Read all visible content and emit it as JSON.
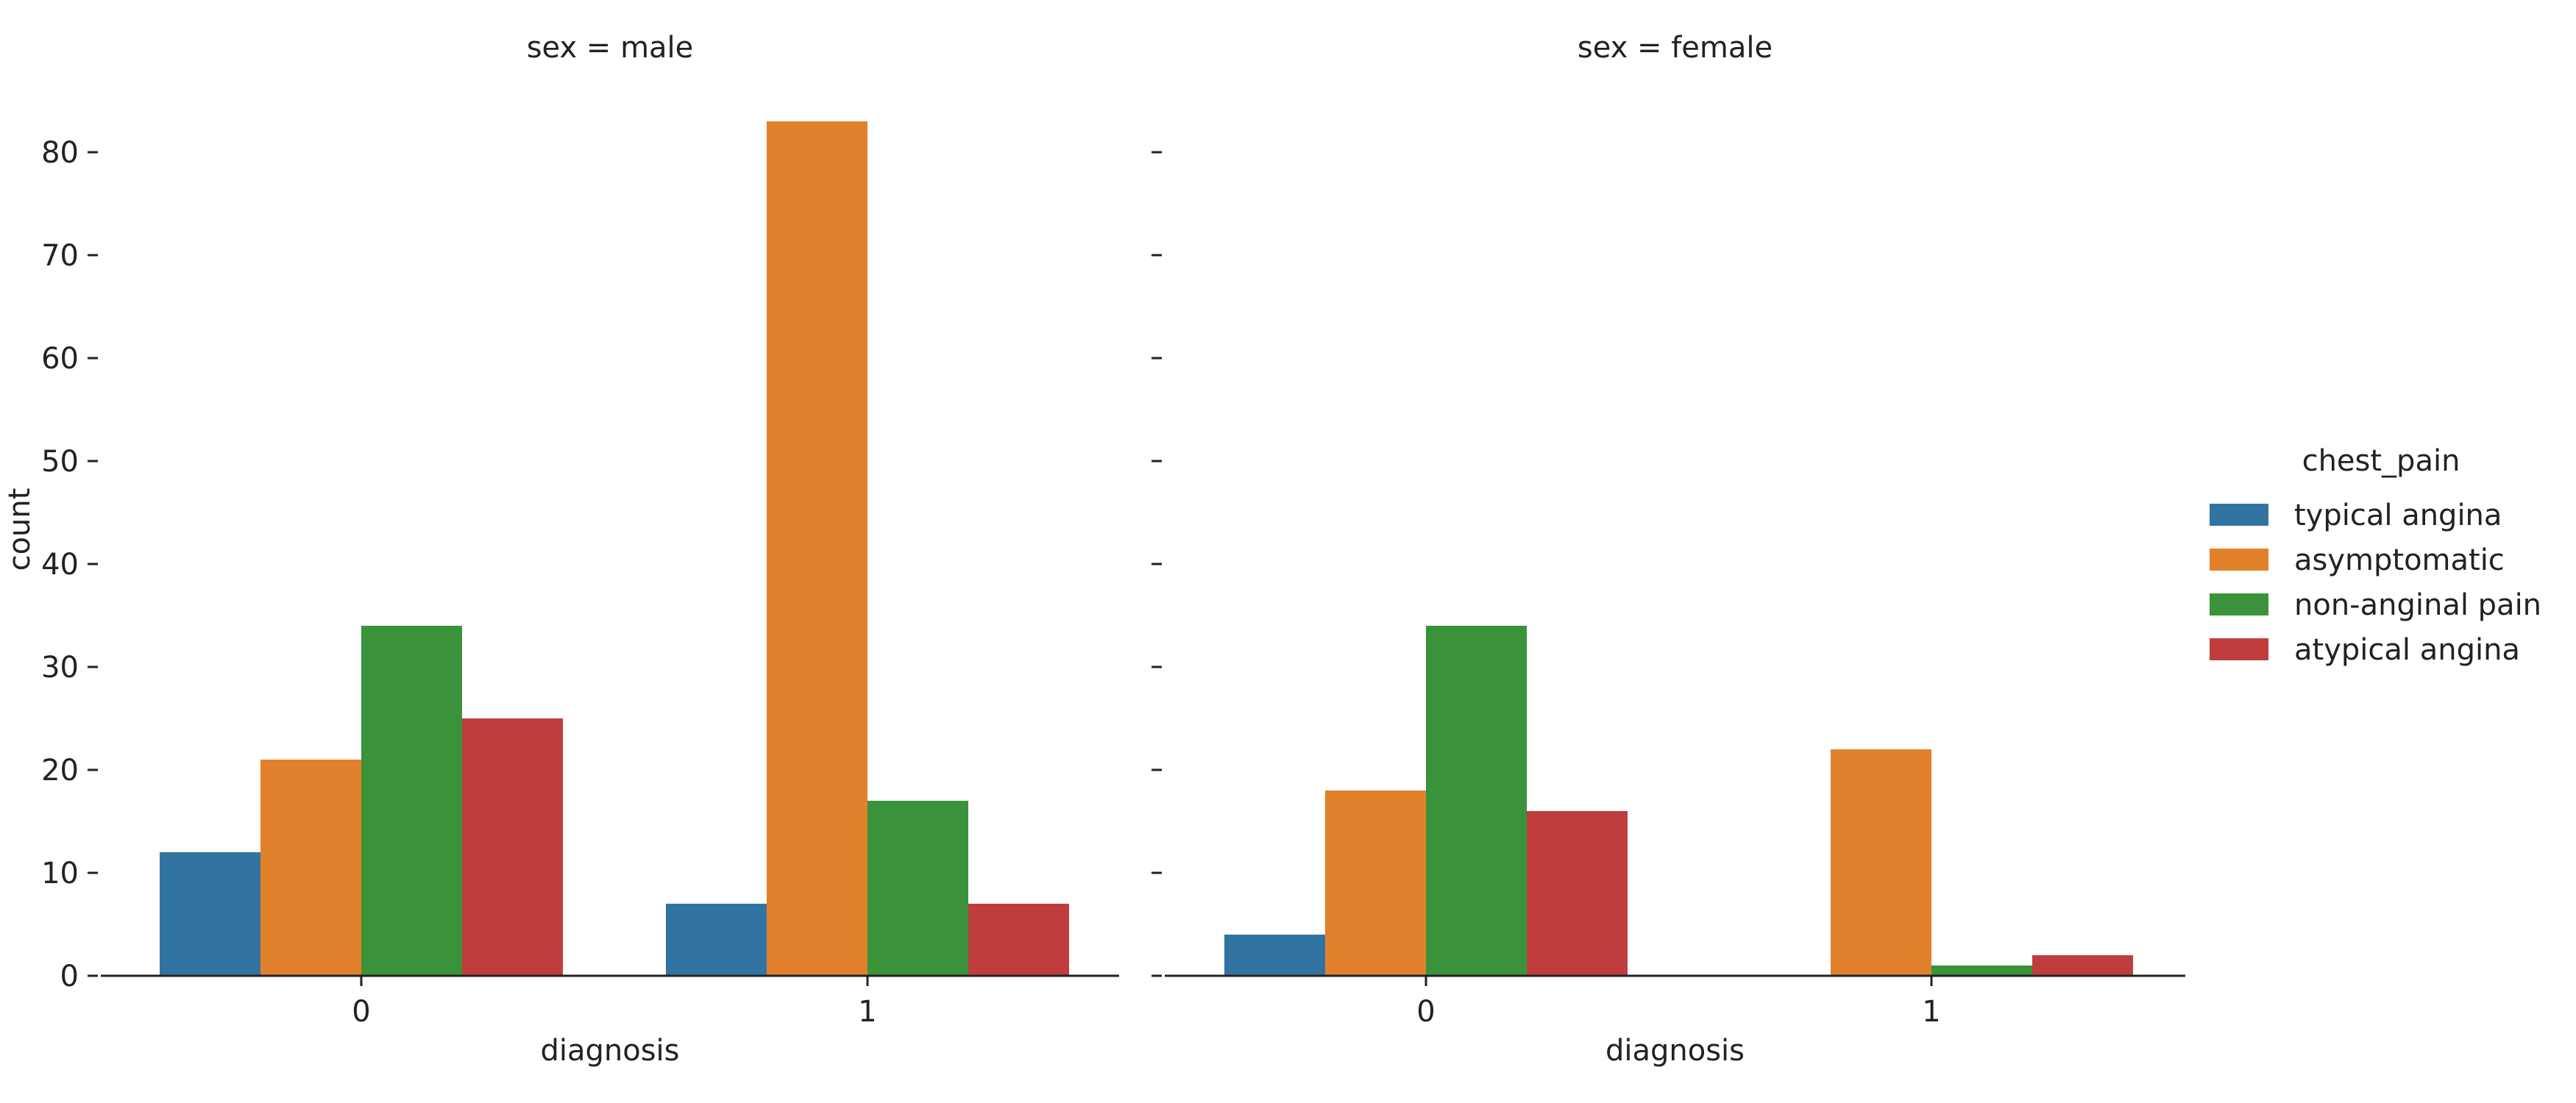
{
  "chart_data": {
    "type": "bar",
    "ylabel": "count",
    "xlabel": "diagnosis",
    "ylim": [
      0,
      85
    ],
    "yticks": [
      0,
      10,
      20,
      30,
      40,
      50,
      60,
      70,
      80
    ],
    "categories": [
      "0",
      "1"
    ],
    "grid": false,
    "legend": {
      "title": "chest_pain",
      "placement": "right",
      "entries": [
        {
          "name": "typical angina",
          "color": "#3274a1"
        },
        {
          "name": "asymptomatic",
          "color": "#e1812c"
        },
        {
          "name": "non-anginal pain",
          "color": "#3a923a"
        },
        {
          "name": "atypical angina",
          "color": "#c03d3e"
        }
      ]
    },
    "panels": [
      {
        "title": "sex = male",
        "series": [
          {
            "name": "typical angina",
            "values": [
              12,
              7
            ]
          },
          {
            "name": "asymptomatic",
            "values": [
              21,
              83
            ]
          },
          {
            "name": "non-anginal pain",
            "values": [
              34,
              17
            ]
          },
          {
            "name": "atypical angina",
            "values": [
              25,
              7
            ]
          }
        ]
      },
      {
        "title": "sex = female",
        "series": [
          {
            "name": "typical angina",
            "values": [
              4,
              0
            ]
          },
          {
            "name": "asymptomatic",
            "values": [
              18,
              22
            ]
          },
          {
            "name": "non-anginal pain",
            "values": [
              34,
              1
            ]
          },
          {
            "name": "atypical angina",
            "values": [
              16,
              2
            ]
          }
        ]
      }
    ]
  }
}
